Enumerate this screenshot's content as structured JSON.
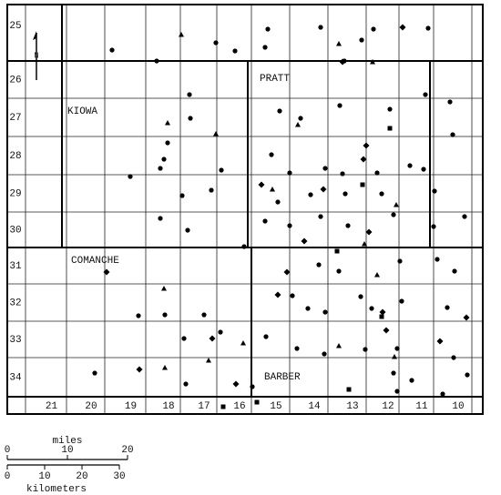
{
  "map": {
    "north": "N",
    "counties": {
      "kiowa": "KIOWA",
      "pratt": "PRATT",
      "comanche": "COMANCHE",
      "barber": "BARBER"
    },
    "townships": [
      "25",
      "26",
      "27",
      "28",
      "29",
      "30",
      "31",
      "32",
      "33",
      "34"
    ],
    "ranges": [
      "21",
      "20",
      "19",
      "18",
      "17",
      "16",
      "15",
      "14",
      "13",
      "12",
      "11",
      "10"
    ],
    "scale": {
      "miles_label": "miles",
      "miles_ticks": [
        0,
        10,
        20
      ],
      "km_label": "kilometers",
      "km_ticks": [
        0,
        10,
        20,
        30
      ]
    }
  }
}
